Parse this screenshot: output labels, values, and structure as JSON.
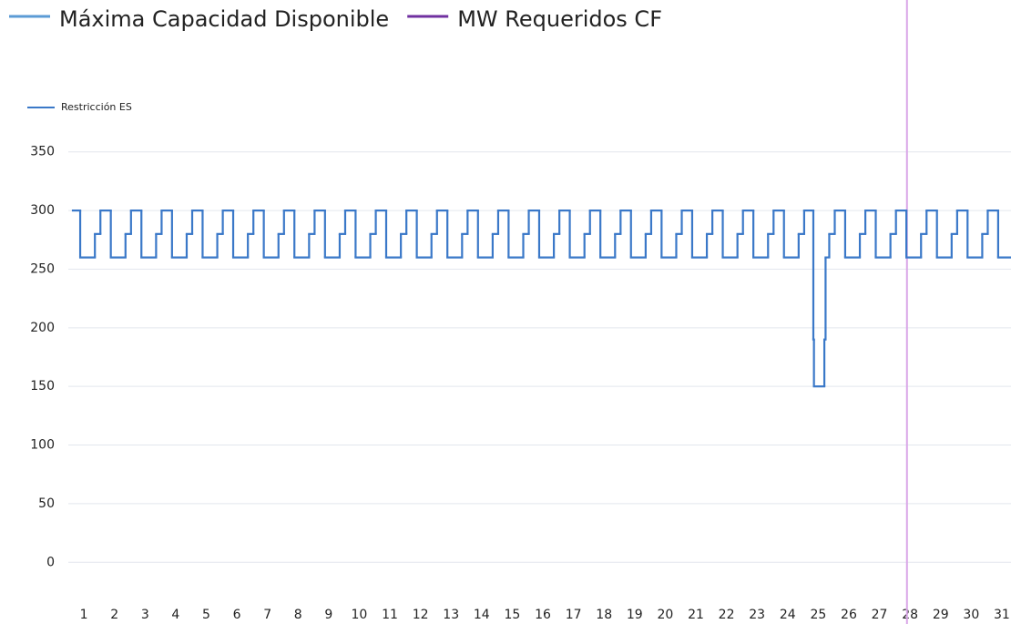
{
  "chart_data": {
    "type": "line",
    "legend": [
      {
        "name": "Máxima Capacidad Disponible",
        "color": "#5b9bd5"
      },
      {
        "name": "MW Requeridos CF",
        "color": "#7030a0"
      }
    ],
    "series": [
      {
        "name": "Restricción ES",
        "color": "#3a78c8",
        "x": [
          0.64,
          0.88,
          1.36,
          1.54,
          1.88,
          2.36,
          2.54,
          2.88,
          3.36,
          3.54,
          3.88,
          4.36,
          4.54,
          4.88,
          5.36,
          5.54,
          5.88,
          6.36,
          6.54,
          6.88,
          7.36,
          7.54,
          7.88,
          8.36,
          8.54,
          8.88,
          9.36,
          9.54,
          9.88,
          10.36,
          10.54,
          10.88,
          11.36,
          11.54,
          11.88,
          12.36,
          12.54,
          12.88,
          13.36,
          13.54,
          13.88,
          14.36,
          14.54,
          14.88,
          15.36,
          15.54,
          15.88,
          16.36,
          16.54,
          16.88,
          17.36,
          17.54,
          17.88,
          18.36,
          18.54,
          18.88,
          19.36,
          19.54,
          19.88,
          20.36,
          20.54,
          20.88,
          21.36,
          21.54,
          21.88,
          22.36,
          22.54,
          22.88,
          23.36,
          23.54,
          23.88,
          24.36,
          24.54,
          24.84,
          24.86,
          25.2,
          25.24,
          25.36,
          25.54,
          25.88,
          26.36,
          26.54,
          26.88,
          27.36,
          27.54,
          27.88,
          28.36,
          28.54,
          28.88,
          29.36,
          29.54,
          29.88,
          30.36,
          30.54,
          30.88
        ],
        "values": [
          300,
          260,
          280,
          300,
          260,
          280,
          300,
          260,
          280,
          300,
          260,
          280,
          300,
          260,
          280,
          300,
          260,
          280,
          300,
          260,
          280,
          300,
          260,
          280,
          300,
          260,
          280,
          300,
          260,
          280,
          300,
          260,
          280,
          300,
          260,
          280,
          300,
          260,
          280,
          300,
          260,
          280,
          300,
          260,
          280,
          300,
          260,
          280,
          300,
          260,
          280,
          300,
          260,
          280,
          300,
          260,
          280,
          300,
          260,
          280,
          300,
          260,
          280,
          300,
          260,
          280,
          300,
          260,
          280,
          300,
          260,
          280,
          300,
          190,
          150,
          190,
          260,
          280,
          300,
          260,
          280,
          300,
          260,
          280,
          300,
          260,
          280,
          300,
          260,
          280,
          300,
          260,
          280,
          300,
          260
        ]
      }
    ],
    "reference_line": {
      "x": 27.9,
      "color": "#d9a6e8"
    },
    "xlim": [
      0.64,
      31.3
    ],
    "xticks": [
      1,
      2,
      3,
      4,
      5,
      6,
      7,
      8,
      9,
      10,
      11,
      12,
      13,
      14,
      15,
      16,
      17,
      18,
      19,
      20,
      21,
      22,
      23,
      24,
      25,
      26,
      27,
      28,
      29,
      30,
      31
    ],
    "ylim": [
      -20,
      370
    ],
    "yticks": [
      0,
      50,
      100,
      150,
      200,
      250,
      300,
      350
    ],
    "grid": true
  }
}
